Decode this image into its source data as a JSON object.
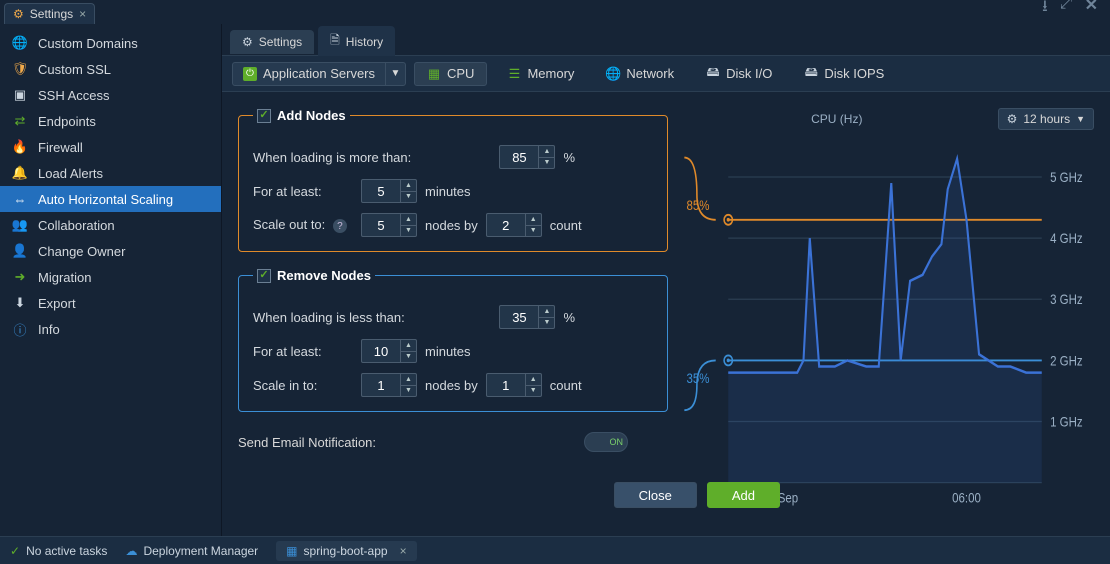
{
  "window": {
    "title": "Settings"
  },
  "sidebar": {
    "items": [
      {
        "label": "Custom Domains",
        "icon": "🌐",
        "color": "#f0a94a"
      },
      {
        "label": "Custom SSL",
        "icon": "🛡",
        "color": "#f0a94a"
      },
      {
        "label": "SSH Access",
        "icon": "▣",
        "color": "#cbd5df"
      },
      {
        "label": "Endpoints",
        "icon": "⇄",
        "color": "#5fae2a"
      },
      {
        "label": "Firewall",
        "icon": "🔥",
        "color": "#3b8fd6"
      },
      {
        "label": "Load Alerts",
        "icon": "🔔",
        "color": "#e08a2a"
      },
      {
        "label": "Auto Horizontal Scaling",
        "icon": "⇔",
        "color": "#ffffff",
        "active": true
      },
      {
        "label": "Collaboration",
        "icon": "👥",
        "color": "#cbd5df"
      },
      {
        "label": "Change Owner",
        "icon": "👤",
        "color": "#cbd5df"
      },
      {
        "label": "Migration",
        "icon": "➜",
        "color": "#5fae2a"
      },
      {
        "label": "Export",
        "icon": "⬇",
        "color": "#cbd5df"
      },
      {
        "label": "Info",
        "icon": "ⓘ",
        "color": "#3b8fd6"
      }
    ]
  },
  "content_tabs": {
    "settings": "Settings",
    "history": "History"
  },
  "server_dropdown": {
    "label": "Application Servers"
  },
  "metrics": {
    "cpu": "CPU",
    "memory": "Memory",
    "network": "Network",
    "diskio": "Disk I/O",
    "diskiops": "Disk IOPS"
  },
  "add_rule": {
    "title": "Add Nodes",
    "checked": true,
    "load_label": "When loading is more than:",
    "load_value": "85",
    "load_unit": "%",
    "for_label": "For at least:",
    "for_value": "5",
    "for_unit": "minutes",
    "scale_label": "Scale out to:",
    "scale_value": "5",
    "by_label": "nodes by",
    "by_value": "2",
    "count_label": "count"
  },
  "remove_rule": {
    "title": "Remove Nodes",
    "checked": true,
    "load_label": "When loading is less than:",
    "load_value": "35",
    "load_unit": "%",
    "for_label": "For at least:",
    "for_value": "10",
    "for_unit": "minutes",
    "scale_label": "Scale in to:",
    "scale_value": "1",
    "by_label": "nodes by",
    "by_value": "1",
    "count_label": "count"
  },
  "notification": {
    "label": "Send Email Notification:",
    "state": "ON"
  },
  "buttons": {
    "close": "Close",
    "add": "Add"
  },
  "chart": {
    "title": "CPU (Hz)",
    "time_range": "12 hours",
    "type": "line",
    "y_axis": {
      "min": 0,
      "max": 5.5,
      "ticks": [
        1,
        2,
        3,
        4,
        5
      ],
      "tick_labels": [
        "1 GHz",
        "2 GHz",
        "3 GHz",
        "4 GHz",
        "5 GHz"
      ],
      "grid_color": "#2b3e52",
      "label_color": "#9bb0c5",
      "label_fontsize": 11
    },
    "x_axis": {
      "tick_labels": [
        "29Sep",
        "06:00"
      ],
      "tick_positions_pct": [
        17,
        76
      ]
    },
    "series": {
      "color": "#3b72d6",
      "fill_color": "rgba(59,114,214,0.12)",
      "line_width": 2,
      "points_pct": [
        [
          0,
          1.8
        ],
        [
          8,
          1.8
        ],
        [
          12,
          1.8
        ],
        [
          18,
          1.8
        ],
        [
          22,
          1.8
        ],
        [
          24,
          2.0
        ],
        [
          26,
          4.0
        ],
        [
          29,
          1.9
        ],
        [
          34,
          1.9
        ],
        [
          38,
          2.0
        ],
        [
          44,
          1.9
        ],
        [
          48,
          1.9
        ],
        [
          52,
          4.9
        ],
        [
          55,
          2.0
        ],
        [
          58,
          3.3
        ],
        [
          62,
          3.4
        ],
        [
          65,
          3.7
        ],
        [
          68,
          3.9
        ],
        [
          70,
          4.8
        ],
        [
          73,
          5.3
        ],
        [
          76,
          4.3
        ],
        [
          80,
          2.1
        ],
        [
          86,
          1.9
        ],
        [
          90,
          1.9
        ],
        [
          95,
          1.8
        ],
        [
          100,
          1.8
        ]
      ]
    },
    "thresholds": {
      "upper": {
        "value_pct": 85,
        "y_ghz": 4.3,
        "label": "85%",
        "color": "#e08a2a"
      },
      "lower": {
        "value_pct": 35,
        "y_ghz": 2.0,
        "label": "35%",
        "color": "#3b8fd6"
      }
    },
    "background_color": "#162436"
  },
  "statusbar": {
    "tasks_label": "No active tasks",
    "dep_mgr": "Deployment Manager",
    "app_tab": "spring-boot-app"
  }
}
